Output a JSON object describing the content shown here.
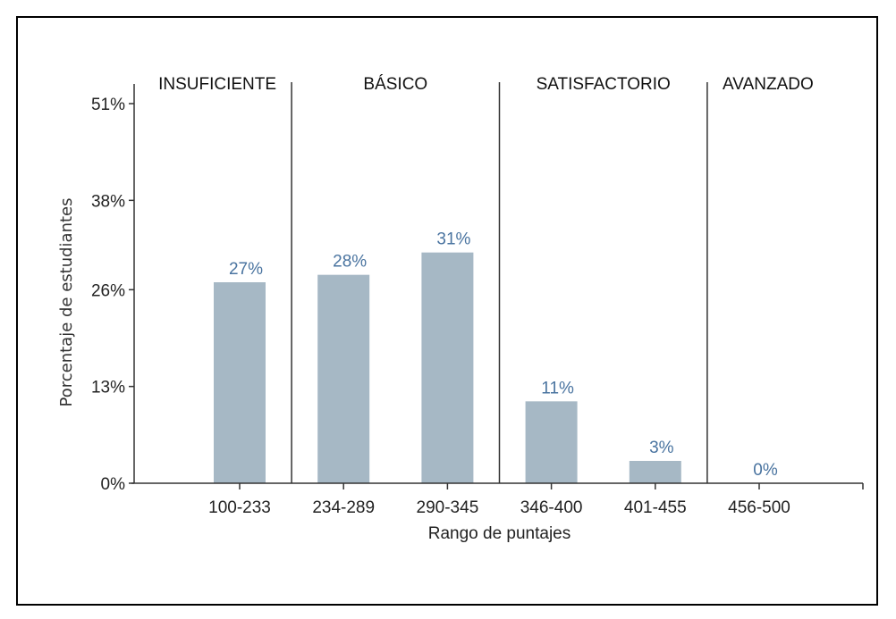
{
  "chart_data": {
    "type": "bar",
    "categories": [
      "100-233",
      "234-289",
      "290-345",
      "346-400",
      "401-455",
      "456-500"
    ],
    "values": [
      27,
      28,
      31,
      11,
      3,
      0
    ],
    "data_labels": [
      "27%",
      "28%",
      "31%",
      "11%",
      "3%",
      "0%"
    ],
    "xlabel": "Rango de puntajes",
    "ylabel": "Porcentaje de estudiantes",
    "ylim": [
      0,
      51
    ],
    "y_ticks": [
      0,
      13,
      26,
      38,
      51
    ],
    "y_tick_labels": [
      "0%",
      "13%",
      "26%",
      "38%",
      "51%"
    ],
    "levels": [
      {
        "name": "INSUFICIENTE",
        "categories": [
          "100-233"
        ]
      },
      {
        "name": "BÁSICO",
        "categories": [
          "234-289",
          "290-345"
        ]
      },
      {
        "name": "SATISFACTORIO",
        "categories": [
          "346-400",
          "401-455"
        ]
      },
      {
        "name": "AVANZADO",
        "categories": [
          "456-500"
        ]
      }
    ],
    "grid": false,
    "colors": {
      "bar": "#a6b8c5",
      "data_label": "#4a74a0",
      "axis": "#333333"
    }
  }
}
